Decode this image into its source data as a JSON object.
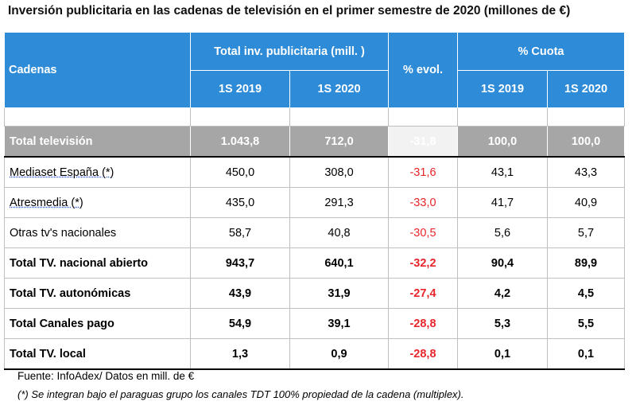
{
  "title": "Inversión publicitaria  en las cadenas de televisión en el primer semestre de 2020 (millones de €)",
  "headers": {
    "cadenas": "Cadenas",
    "total_inv": "Total  inv. publicitaria  (mill. )",
    "evol": "% evol.",
    "cuota": "% Cuota",
    "s2019_a": "1S 2019",
    "s2020_a": "1S 2020",
    "s2019_b": "1S 2019",
    "s2020_b": "1S 2020"
  },
  "rows": [
    {
      "name": "Total televisión",
      "inv2019": "1.043,8",
      "inv2020": "712,0",
      "evol": "-31,8",
      "cuota2019": "100,0",
      "cuota2020": "100,0"
    },
    {
      "name": "Mediaset España (*)",
      "inv2019": "450,0",
      "inv2020": "308,0",
      "evol": "-31,6",
      "cuota2019": "43,1",
      "cuota2020": "43,3"
    },
    {
      "name": "Atresmedia  (*)",
      "inv2019": "435,0",
      "inv2020": "291,3",
      "evol": "-33,0",
      "cuota2019": "41,7",
      "cuota2020": "40,9"
    },
    {
      "name": "Otras tv's nacionales",
      "inv2019": "58,7",
      "inv2020": "40,8",
      "evol": "-30,5",
      "cuota2019": "5,6",
      "cuota2020": "5,7"
    },
    {
      "name": "Total TV. nacional abierto",
      "inv2019": "943,7",
      "inv2020": "640,1",
      "evol": "-32,2",
      "cuota2019": "90,4",
      "cuota2020": "89,9"
    },
    {
      "name": "Total TV. autonómicas",
      "inv2019": "43,9",
      "inv2020": "31,9",
      "evol": "-27,4",
      "cuota2019": "4,2",
      "cuota2020": "4,5"
    },
    {
      "name": "Total Canales pago",
      "inv2019": "54,9",
      "inv2020": "39,1",
      "evol": "-28,8",
      "cuota2019": "5,3",
      "cuota2020": "5,5"
    },
    {
      "name": "Total TV. local",
      "inv2019": "1,3",
      "inv2020": "0,9",
      "evol": "-28,8",
      "cuota2019": "0,1",
      "cuota2020": "0,1"
    }
  ],
  "footnote1": "Fuente: InfoAdex/ Datos en mill. de €",
  "footnote2": "(*) Se integran bajo el paraguas grupo los canales TDT 100% propiedad de la cadena (multiplex).",
  "colors": {
    "header_blue": "#2e8bd8",
    "total_gray": "#a6a6a6",
    "negative_red": "#e8252b"
  }
}
